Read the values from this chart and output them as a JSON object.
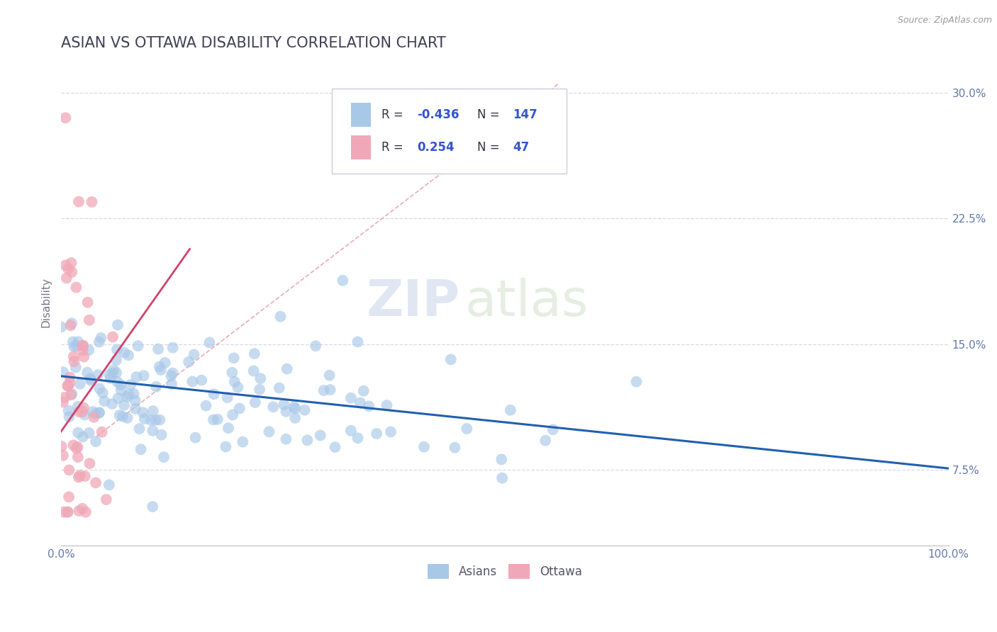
{
  "title": "ASIAN VS OTTAWA DISABILITY CORRELATION CHART",
  "source": "Source: ZipAtlas.com",
  "ylabel": "Disability",
  "xlim": [
    0.0,
    1.0
  ],
  "ylim": [
    0.03,
    0.32
  ],
  "yticks": [
    0.075,
    0.15,
    0.225,
    0.3
  ],
  "ytick_labels": [
    "7.5%",
    "15.0%",
    "22.5%",
    "30.0%"
  ],
  "xticks": [
    0.0,
    0.125,
    0.25,
    0.375,
    0.5,
    0.625,
    0.75,
    0.875,
    1.0
  ],
  "xtick_labels": [
    "0.0%",
    "",
    "",
    "",
    "",
    "",
    "",
    "",
    "100.0%"
  ],
  "R_asian": -0.436,
  "N_asian": 147,
  "R_ottawa": 0.254,
  "N_ottawa": 47,
  "blue_color": "#A8C8E8",
  "pink_color": "#F0A8B8",
  "blue_line_color": "#2060B0",
  "pink_line_color": "#D04468",
  "pink_dash_color": "#E08898",
  "title_color": "#404055",
  "title_fontsize": 15,
  "axis_label_fontsize": 11,
  "tick_fontsize": 11,
  "watermark_zip": "ZIP",
  "watermark_atlas": "atlas",
  "background_color": "#ffffff",
  "grid_color": "#d8d8e8"
}
